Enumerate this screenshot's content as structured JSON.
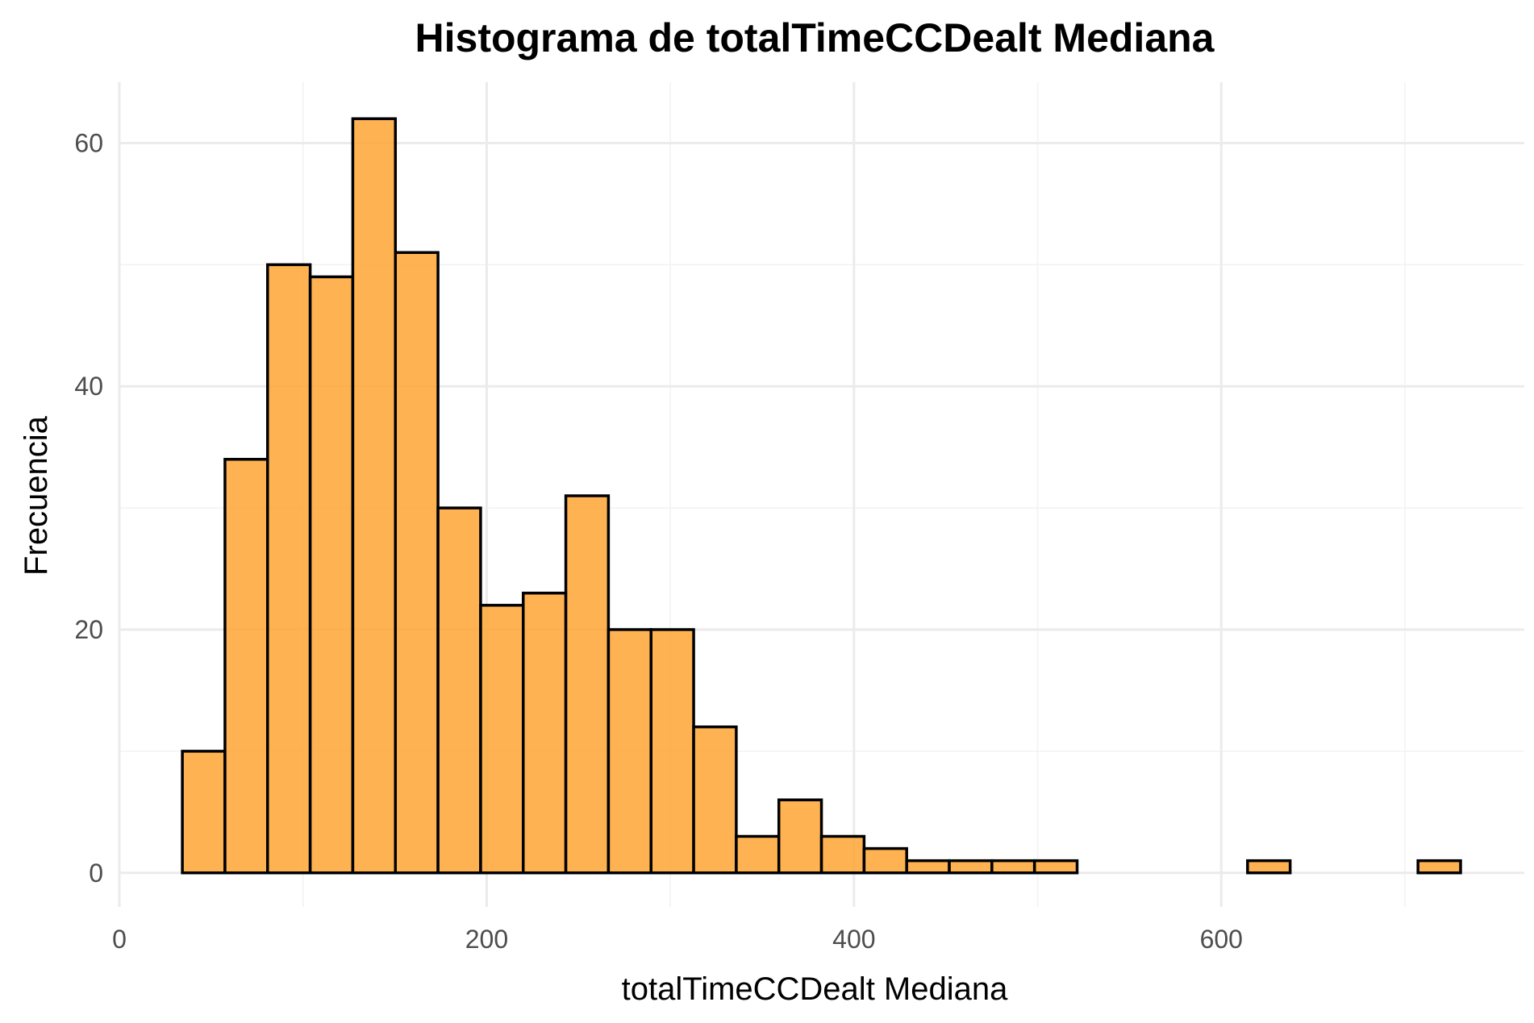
{
  "chart_data": {
    "type": "bar",
    "subtype": "histogram",
    "title": "Histograma de totalTimeCCDealt Mediana",
    "xlabel": "totalTimeCCDealt Mediana",
    "ylabel": "Frecuencia",
    "xlim": [
      0,
      765
    ],
    "ylim": [
      -2.8,
      65
    ],
    "x_ticks": [
      0,
      200,
      400,
      600
    ],
    "x_tick_labels": [
      "0",
      "200",
      "400",
      "600"
    ],
    "y_ticks": [
      0,
      20,
      40,
      60
    ],
    "y_tick_labels": [
      "0",
      "20",
      "40",
      "60"
    ],
    "grid": true,
    "legend": "none",
    "bar_fill": "#FFA532",
    "bar_outline": "#000000",
    "bin_width": 23.2,
    "bins": [
      {
        "x0": 34.3,
        "x1": 57.5,
        "count": 10
      },
      {
        "x0": 57.5,
        "x1": 80.7,
        "count": 34
      },
      {
        "x0": 80.7,
        "x1": 103.9,
        "count": 50
      },
      {
        "x0": 103.9,
        "x1": 127.1,
        "count": 49
      },
      {
        "x0": 127.1,
        "x1": 150.3,
        "count": 62
      },
      {
        "x0": 150.3,
        "x1": 173.5,
        "count": 51
      },
      {
        "x0": 173.5,
        "x1": 196.7,
        "count": 30
      },
      {
        "x0": 196.7,
        "x1": 219.9,
        "count": 22
      },
      {
        "x0": 219.9,
        "x1": 243.1,
        "count": 23
      },
      {
        "x0": 243.1,
        "x1": 266.3,
        "count": 31
      },
      {
        "x0": 266.3,
        "x1": 289.5,
        "count": 20
      },
      {
        "x0": 289.5,
        "x1": 312.7,
        "count": 20
      },
      {
        "x0": 312.7,
        "x1": 335.9,
        "count": 12
      },
      {
        "x0": 335.9,
        "x1": 359.1,
        "count": 3
      },
      {
        "x0": 359.1,
        "x1": 382.3,
        "count": 6
      },
      {
        "x0": 382.3,
        "x1": 405.5,
        "count": 3
      },
      {
        "x0": 405.5,
        "x1": 428.7,
        "count": 2
      },
      {
        "x0": 428.7,
        "x1": 451.9,
        "count": 1
      },
      {
        "x0": 451.9,
        "x1": 475.1,
        "count": 1
      },
      {
        "x0": 475.1,
        "x1": 498.3,
        "count": 1
      },
      {
        "x0": 498.3,
        "x1": 521.5,
        "count": 1
      },
      {
        "x0": 521.5,
        "x1": 544.7,
        "count": 0
      },
      {
        "x0": 544.7,
        "x1": 567.9,
        "count": 0
      },
      {
        "x0": 567.9,
        "x1": 591.1,
        "count": 0
      },
      {
        "x0": 591.1,
        "x1": 614.3,
        "count": 0
      },
      {
        "x0": 614.3,
        "x1": 637.5,
        "count": 1
      },
      {
        "x0": 637.5,
        "x1": 660.7,
        "count": 0
      },
      {
        "x0": 660.7,
        "x1": 683.9,
        "count": 0
      },
      {
        "x0": 683.9,
        "x1": 707.1,
        "count": 0
      },
      {
        "x0": 707.1,
        "x1": 730.3,
        "count": 1
      }
    ]
  }
}
